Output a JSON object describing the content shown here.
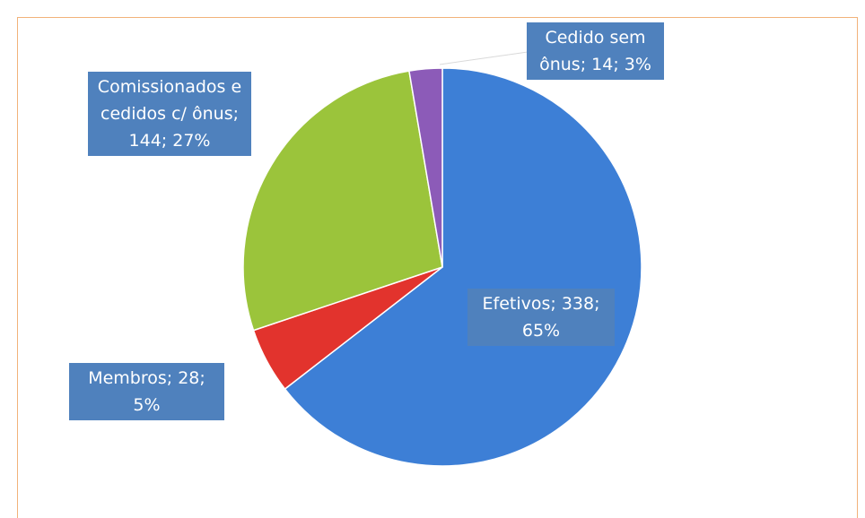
{
  "chart_data": {
    "type": "pie",
    "categories": [
      "Efetivos",
      "Membros",
      "Comissionados e cedidos c/ ônus",
      "Cedido sem ônus"
    ],
    "values": [
      338,
      28,
      144,
      14
    ],
    "value_labels": [
      "Efetivos; 338; 65%",
      "Membros; 28; 5%",
      "Comissionados e cedidos c/ ônus; 144; 27%",
      "Cedido sem ônus; 14; 3%"
    ],
    "colors": [
      "#3d7fd6",
      "#e2332d",
      "#9bc43b",
      "#8c5bb8"
    ]
  }
}
